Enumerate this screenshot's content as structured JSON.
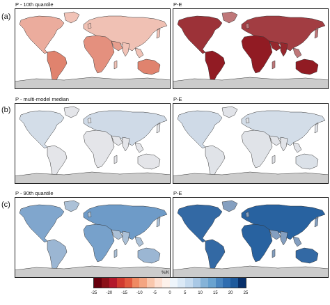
{
  "rows": [
    {
      "label": "(a)",
      "panels": [
        {
          "title": "P - 10th quantile",
          "tint": "#d9674f",
          "tint_strength": 0.55,
          "scene": "a_left"
        },
        {
          "title": "P-E",
          "tint": "#8b1018",
          "tint_strength": 0.9,
          "scene": "a_right"
        }
      ]
    },
    {
      "label": "(b)",
      "panels": [
        {
          "title": "P - multi-model median",
          "tint": "#a9c8e5",
          "tint_strength": 0.5,
          "scene": "b_left"
        },
        {
          "title": "P-E",
          "tint": "#a9c8e5",
          "tint_strength": 0.55,
          "scene": "b_right"
        }
      ]
    },
    {
      "label": "(c)",
      "panels": [
        {
          "title": "P - 90th quantile",
          "tint": "#4a86c0",
          "tint_strength": 0.75,
          "scene": "c_left"
        },
        {
          "title": "P-E",
          "tint": "#1d5a9c",
          "tint_strength": 0.9,
          "scene": "c_right"
        }
      ]
    }
  ],
  "colorbar": {
    "units": "%/K",
    "ticks": [
      "-25",
      "-20",
      "-15",
      "-10",
      "-5",
      "0",
      "5",
      "10",
      "15",
      "20",
      "25"
    ],
    "colors": [
      "#67000d",
      "#8b1018",
      "#b2182b",
      "#d03a2f",
      "#e15a3f",
      "#ef8a62",
      "#f4a582",
      "#f9c7ad",
      "#fde0d2",
      "#fdf1ea",
      "#eef5fb",
      "#dbe9f6",
      "#c6dbef",
      "#a9c8e5",
      "#85b3d8",
      "#6aa3d0",
      "#4a86c0",
      "#2f6db0",
      "#1d5a9c",
      "#08306b"
    ],
    "min": -25,
    "max": 25
  },
  "land_color": "#fdf1ea",
  "antarctica_color": "#cccccc"
}
